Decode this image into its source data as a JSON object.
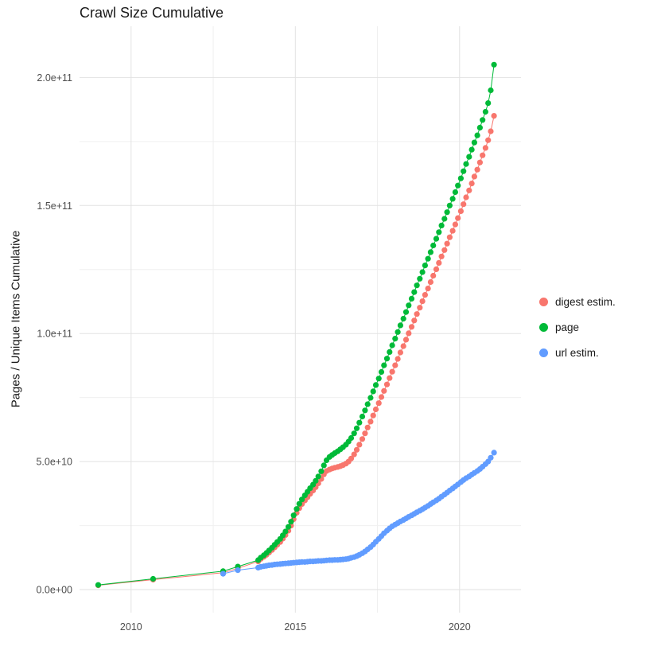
{
  "title": "Crawl Size Cumulative",
  "chart_data": {
    "type": "scatter",
    "title": "Crawl Size Cumulative",
    "xlabel": "",
    "ylabel": "Pages / Unique Items Cumulative",
    "value_unit": "1e9",
    "grid": "on",
    "legend_position": "right",
    "xlim": [
      2008.43,
      2021.87
    ],
    "ylim_e9": [
      -9,
      220
    ],
    "x_major_ticks": [
      {
        "v": 2010,
        "label": "2010"
      },
      {
        "v": 2015,
        "label": "2015"
      },
      {
        "v": 2020,
        "label": "2020"
      }
    ],
    "x_minor_ticks": [
      2012.5,
      2017.5
    ],
    "y_major_ticks": [
      {
        "v": 0,
        "label": "0.0e+00"
      },
      {
        "v": 50,
        "label": "5.0e+10"
      },
      {
        "v": 100,
        "label": "1.0e+11"
      },
      {
        "v": 150,
        "label": "1.5e+11"
      },
      {
        "v": 200,
        "label": "2.0e+11"
      }
    ],
    "y_minor_ticks": [
      25,
      75,
      125,
      175
    ],
    "series": [
      {
        "name": "digest estim.",
        "color": "#F8766D",
        "points": [
          [
            2009.0,
            1.7
          ],
          [
            2010.67,
            3.9
          ],
          [
            2012.8,
            6.6
          ],
          [
            2013.25,
            8.3
          ],
          [
            2013.87,
            11.0
          ],
          [
            2013.95,
            12.0
          ],
          [
            2014.04,
            12.8
          ],
          [
            2014.12,
            13.6
          ],
          [
            2014.2,
            14.5
          ],
          [
            2014.29,
            15.5
          ],
          [
            2014.37,
            16.5
          ],
          [
            2014.45,
            17.5
          ],
          [
            2014.54,
            18.6
          ],
          [
            2014.62,
            19.9
          ],
          [
            2014.7,
            21.3
          ],
          [
            2014.79,
            23.0
          ],
          [
            2014.87,
            25.0
          ],
          [
            2014.95,
            27.5
          ],
          [
            2015.04,
            30.0
          ],
          [
            2015.12,
            31.8
          ],
          [
            2015.2,
            33.4
          ],
          [
            2015.29,
            34.8
          ],
          [
            2015.37,
            36.1
          ],
          [
            2015.45,
            37.4
          ],
          [
            2015.54,
            38.7
          ],
          [
            2015.62,
            40.0
          ],
          [
            2015.7,
            41.5
          ],
          [
            2015.79,
            43.2
          ],
          [
            2015.87,
            45.0
          ],
          [
            2015.95,
            46.3
          ],
          [
            2016.04,
            46.9
          ],
          [
            2016.12,
            47.3
          ],
          [
            2016.2,
            47.6
          ],
          [
            2016.29,
            47.9
          ],
          [
            2016.37,
            48.2
          ],
          [
            2016.45,
            48.6
          ],
          [
            2016.54,
            49.2
          ],
          [
            2016.62,
            50.0
          ],
          [
            2016.7,
            51.2
          ],
          [
            2016.79,
            52.8
          ],
          [
            2016.87,
            54.6
          ],
          [
            2016.95,
            56.6
          ],
          [
            2017.04,
            58.8
          ],
          [
            2017.12,
            61.0
          ],
          [
            2017.2,
            63.3
          ],
          [
            2017.29,
            65.6
          ],
          [
            2017.37,
            68.0
          ],
          [
            2017.45,
            70.4
          ],
          [
            2017.54,
            72.8
          ],
          [
            2017.62,
            75.2
          ],
          [
            2017.7,
            77.6
          ],
          [
            2017.79,
            80.1
          ],
          [
            2017.87,
            82.6
          ],
          [
            2017.95,
            85.1
          ],
          [
            2018.04,
            87.6
          ],
          [
            2018.12,
            90.1
          ],
          [
            2018.2,
            92.6
          ],
          [
            2018.29,
            95.1
          ],
          [
            2018.37,
            97.6
          ],
          [
            2018.45,
            100.1
          ],
          [
            2018.54,
            102.6
          ],
          [
            2018.62,
            105.1
          ],
          [
            2018.7,
            107.6
          ],
          [
            2018.79,
            110.1
          ],
          [
            2018.87,
            112.6
          ],
          [
            2018.95,
            115.1
          ],
          [
            2019.04,
            117.6
          ],
          [
            2019.12,
            120.1
          ],
          [
            2019.2,
            122.6
          ],
          [
            2019.29,
            125.1
          ],
          [
            2019.37,
            127.6
          ],
          [
            2019.45,
            130.1
          ],
          [
            2019.54,
            132.6
          ],
          [
            2019.62,
            135.1
          ],
          [
            2019.7,
            137.6
          ],
          [
            2019.79,
            140.1
          ],
          [
            2019.87,
            142.6
          ],
          [
            2019.95,
            145.1
          ],
          [
            2020.04,
            147.8
          ],
          [
            2020.12,
            150.5
          ],
          [
            2020.2,
            153.2
          ],
          [
            2020.29,
            155.9
          ],
          [
            2020.37,
            158.6
          ],
          [
            2020.45,
            161.3
          ],
          [
            2020.54,
            164.0
          ],
          [
            2020.62,
            166.8
          ],
          [
            2020.7,
            169.6
          ],
          [
            2020.79,
            172.5
          ],
          [
            2020.87,
            175.5
          ],
          [
            2020.95,
            179.0
          ],
          [
            2021.05,
            185.0
          ]
        ]
      },
      {
        "name": "page",
        "color": "#00BA38",
        "points": [
          [
            2009.0,
            1.8
          ],
          [
            2010.67,
            4.2
          ],
          [
            2012.8,
            7.2
          ],
          [
            2013.25,
            9.0
          ],
          [
            2013.87,
            11.5
          ],
          [
            2013.95,
            12.5
          ],
          [
            2014.04,
            13.4
          ],
          [
            2014.12,
            14.3
          ],
          [
            2014.2,
            15.3
          ],
          [
            2014.29,
            16.4
          ],
          [
            2014.37,
            17.5
          ],
          [
            2014.45,
            18.6
          ],
          [
            2014.54,
            19.8
          ],
          [
            2014.62,
            21.2
          ],
          [
            2014.7,
            22.7
          ],
          [
            2014.79,
            24.5
          ],
          [
            2014.87,
            26.5
          ],
          [
            2014.95,
            29.0
          ],
          [
            2015.04,
            31.5
          ],
          [
            2015.12,
            33.5
          ],
          [
            2015.2,
            35.2
          ],
          [
            2015.29,
            36.8
          ],
          [
            2015.37,
            38.2
          ],
          [
            2015.45,
            39.6
          ],
          [
            2015.54,
            41.0
          ],
          [
            2015.62,
            42.5
          ],
          [
            2015.7,
            44.2
          ],
          [
            2015.79,
            46.2
          ],
          [
            2015.87,
            48.5
          ],
          [
            2015.95,
            50.5
          ],
          [
            2016.04,
            51.8
          ],
          [
            2016.12,
            52.6
          ],
          [
            2016.2,
            53.3
          ],
          [
            2016.29,
            54.0
          ],
          [
            2016.37,
            54.8
          ],
          [
            2016.45,
            55.6
          ],
          [
            2016.54,
            56.6
          ],
          [
            2016.62,
            57.8
          ],
          [
            2016.7,
            59.2
          ],
          [
            2016.79,
            61.0
          ],
          [
            2016.87,
            63.0
          ],
          [
            2016.95,
            65.2
          ],
          [
            2017.04,
            67.6
          ],
          [
            2017.12,
            70.0
          ],
          [
            2017.2,
            72.4
          ],
          [
            2017.29,
            74.9
          ],
          [
            2017.37,
            77.4
          ],
          [
            2017.45,
            79.9
          ],
          [
            2017.54,
            82.4
          ],
          [
            2017.62,
            85.0
          ],
          [
            2017.7,
            87.6
          ],
          [
            2017.79,
            90.2
          ],
          [
            2017.87,
            92.8
          ],
          [
            2017.95,
            95.4
          ],
          [
            2018.04,
            98.0
          ],
          [
            2018.12,
            100.6
          ],
          [
            2018.2,
            103.2
          ],
          [
            2018.29,
            105.8
          ],
          [
            2018.37,
            108.4
          ],
          [
            2018.45,
            111.0
          ],
          [
            2018.54,
            113.6
          ],
          [
            2018.62,
            116.2
          ],
          [
            2018.7,
            118.8
          ],
          [
            2018.79,
            121.4
          ],
          [
            2018.87,
            124.0
          ],
          [
            2018.95,
            126.6
          ],
          [
            2019.04,
            129.2
          ],
          [
            2019.12,
            131.8
          ],
          [
            2019.2,
            134.4
          ],
          [
            2019.29,
            137.0
          ],
          [
            2019.37,
            139.6
          ],
          [
            2019.45,
            142.2
          ],
          [
            2019.54,
            144.8
          ],
          [
            2019.62,
            147.4
          ],
          [
            2019.7,
            150.0
          ],
          [
            2019.79,
            152.6
          ],
          [
            2019.87,
            155.2
          ],
          [
            2019.95,
            157.8
          ],
          [
            2020.04,
            160.6
          ],
          [
            2020.12,
            163.4
          ],
          [
            2020.2,
            166.2
          ],
          [
            2020.29,
            169.0
          ],
          [
            2020.37,
            171.8
          ],
          [
            2020.45,
            174.6
          ],
          [
            2020.54,
            177.4
          ],
          [
            2020.62,
            180.4
          ],
          [
            2020.7,
            183.4
          ],
          [
            2020.79,
            186.6
          ],
          [
            2020.87,
            190.0
          ],
          [
            2020.95,
            195.0
          ],
          [
            2021.05,
            205.0
          ]
        ]
      },
      {
        "name": "url estim.",
        "color": "#619CFF",
        "points": [
          [
            2012.8,
            6.2
          ],
          [
            2013.25,
            7.6
          ],
          [
            2013.87,
            8.6
          ],
          [
            2013.95,
            8.9
          ],
          [
            2014.04,
            9.1
          ],
          [
            2014.12,
            9.3
          ],
          [
            2014.2,
            9.5
          ],
          [
            2014.29,
            9.6
          ],
          [
            2014.37,
            9.8
          ],
          [
            2014.45,
            9.9
          ],
          [
            2014.54,
            10.0
          ],
          [
            2014.62,
            10.1
          ],
          [
            2014.7,
            10.2
          ],
          [
            2014.79,
            10.3
          ],
          [
            2014.87,
            10.4
          ],
          [
            2014.95,
            10.5
          ],
          [
            2015.04,
            10.6
          ],
          [
            2015.12,
            10.7
          ],
          [
            2015.2,
            10.8
          ],
          [
            2015.29,
            10.8
          ],
          [
            2015.37,
            10.9
          ],
          [
            2015.45,
            11.0
          ],
          [
            2015.54,
            11.0
          ],
          [
            2015.62,
            11.1
          ],
          [
            2015.7,
            11.2
          ],
          [
            2015.79,
            11.2
          ],
          [
            2015.87,
            11.3
          ],
          [
            2015.95,
            11.4
          ],
          [
            2016.04,
            11.5
          ],
          [
            2016.12,
            11.5
          ],
          [
            2016.2,
            11.6
          ],
          [
            2016.29,
            11.6
          ],
          [
            2016.37,
            11.7
          ],
          [
            2016.45,
            11.8
          ],
          [
            2016.54,
            11.9
          ],
          [
            2016.62,
            12.1
          ],
          [
            2016.7,
            12.4
          ],
          [
            2016.79,
            12.7
          ],
          [
            2016.87,
            13.1
          ],
          [
            2016.95,
            13.6
          ],
          [
            2017.04,
            14.2
          ],
          [
            2017.12,
            14.9
          ],
          [
            2017.2,
            15.7
          ],
          [
            2017.29,
            16.6
          ],
          [
            2017.37,
            17.6
          ],
          [
            2017.45,
            18.7
          ],
          [
            2017.54,
            19.8
          ],
          [
            2017.62,
            20.9
          ],
          [
            2017.7,
            22.0
          ],
          [
            2017.79,
            23.0
          ],
          [
            2017.87,
            23.9
          ],
          [
            2017.95,
            24.7
          ],
          [
            2018.04,
            25.4
          ],
          [
            2018.12,
            26.0
          ],
          [
            2018.2,
            26.6
          ],
          [
            2018.29,
            27.2
          ],
          [
            2018.37,
            27.8
          ],
          [
            2018.45,
            28.4
          ],
          [
            2018.54,
            29.0
          ],
          [
            2018.62,
            29.6
          ],
          [
            2018.7,
            30.2
          ],
          [
            2018.79,
            30.8
          ],
          [
            2018.87,
            31.4
          ],
          [
            2018.95,
            32.0
          ],
          [
            2019.04,
            32.7
          ],
          [
            2019.12,
            33.4
          ],
          [
            2019.2,
            34.1
          ],
          [
            2019.29,
            34.8
          ],
          [
            2019.37,
            35.5
          ],
          [
            2019.45,
            36.3
          ],
          [
            2019.54,
            37.1
          ],
          [
            2019.62,
            37.9
          ],
          [
            2019.7,
            38.7
          ],
          [
            2019.79,
            39.5
          ],
          [
            2019.87,
            40.3
          ],
          [
            2019.95,
            41.1
          ],
          [
            2020.04,
            42.0
          ],
          [
            2020.12,
            42.8
          ],
          [
            2020.2,
            43.5
          ],
          [
            2020.29,
            44.2
          ],
          [
            2020.37,
            44.9
          ],
          [
            2020.45,
            45.6
          ],
          [
            2020.54,
            46.3
          ],
          [
            2020.62,
            47.1
          ],
          [
            2020.7,
            48.0
          ],
          [
            2020.79,
            49.0
          ],
          [
            2020.87,
            50.0
          ],
          [
            2020.95,
            51.5
          ],
          [
            2021.05,
            53.5
          ]
        ]
      }
    ]
  },
  "style": {
    "grid_major_color": "#E2E2E2",
    "grid_minor_color": "#F0F0F0",
    "tick_label_color": "#4d4d4d"
  }
}
